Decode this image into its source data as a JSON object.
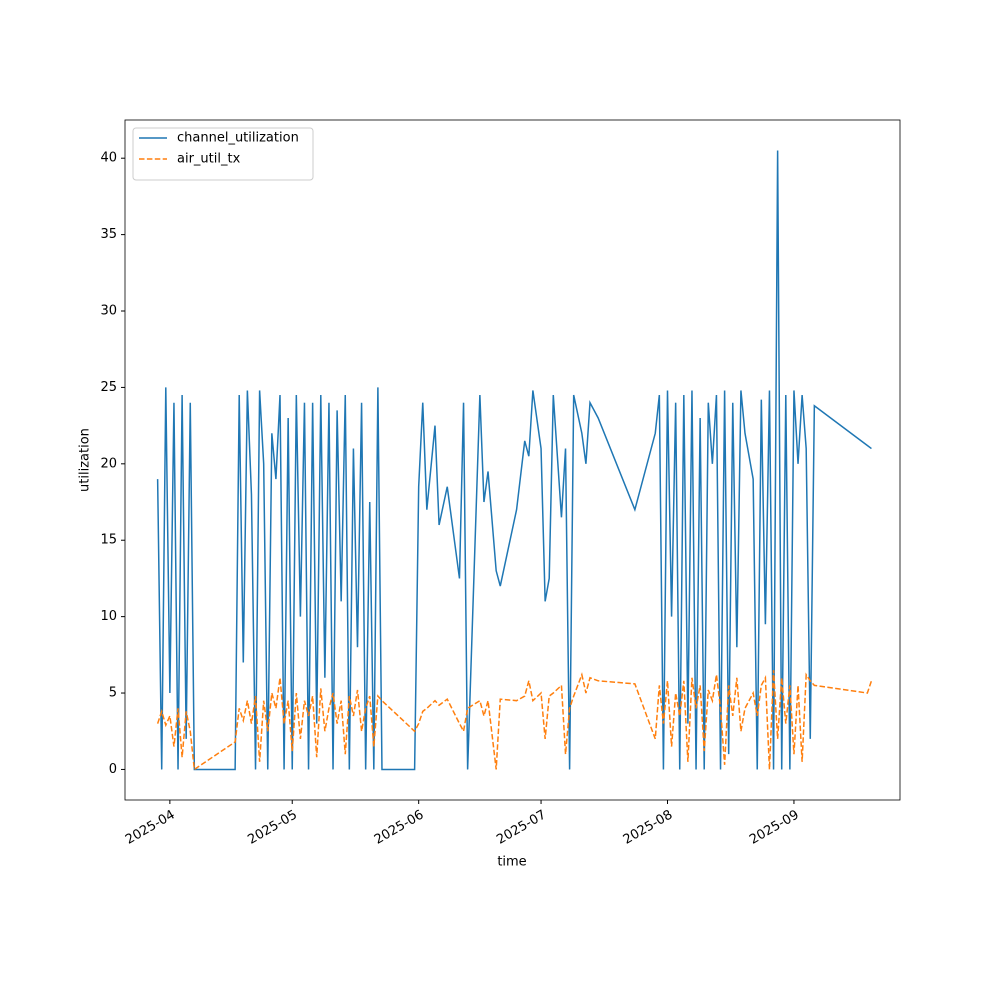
{
  "chart_data": {
    "type": "line",
    "x_label": "time",
    "y_label": "utilization",
    "x": [
      "2025-03-29",
      "2025-03-30",
      "2025-03-31",
      "2025-04-01",
      "2025-04-02",
      "2025-04-03",
      "2025-04-04",
      "2025-04-05",
      "2025-04-06",
      "2025-04-07",
      "2025-04-17",
      "2025-04-18",
      "2025-04-19",
      "2025-04-20",
      "2025-04-21",
      "2025-04-22",
      "2025-04-23",
      "2025-04-24",
      "2025-04-25",
      "2025-04-26",
      "2025-04-27",
      "2025-04-28",
      "2025-04-29",
      "2025-04-30",
      "2025-05-01",
      "2025-05-02",
      "2025-05-03",
      "2025-05-04",
      "2025-05-05",
      "2025-05-06",
      "2025-05-07",
      "2025-05-08",
      "2025-05-09",
      "2025-05-10",
      "2025-05-11",
      "2025-05-12",
      "2025-05-13",
      "2025-05-14",
      "2025-05-15",
      "2025-05-16",
      "2025-05-17",
      "2025-05-18",
      "2025-05-19",
      "2025-05-20",
      "2025-05-21",
      "2025-05-22",
      "2025-05-23",
      "2025-05-31",
      "2025-06-01",
      "2025-06-02",
      "2025-06-03",
      "2025-06-05",
      "2025-06-06",
      "2025-06-08",
      "2025-06-11",
      "2025-06-12",
      "2025-06-13",
      "2025-06-16",
      "2025-06-17",
      "2025-06-18",
      "2025-06-20",
      "2025-06-21",
      "2025-06-25",
      "2025-06-27",
      "2025-06-28",
      "2025-06-29",
      "2025-07-01",
      "2025-07-02",
      "2025-07-03",
      "2025-07-04",
      "2025-07-06",
      "2025-07-07",
      "2025-07-08",
      "2025-07-09",
      "2025-07-11",
      "2025-07-12",
      "2025-07-13",
      "2025-07-15",
      "2025-07-24",
      "2025-07-29",
      "2025-07-30",
      "2025-07-31",
      "2025-08-01",
      "2025-08-02",
      "2025-08-03",
      "2025-08-04",
      "2025-08-05",
      "2025-08-06",
      "2025-08-07",
      "2025-08-08",
      "2025-08-09",
      "2025-08-10",
      "2025-08-11",
      "2025-08-12",
      "2025-08-13",
      "2025-08-14",
      "2025-08-15",
      "2025-08-16",
      "2025-08-17",
      "2025-08-18",
      "2025-08-19",
      "2025-08-20",
      "2025-08-22",
      "2025-08-23",
      "2025-08-24",
      "2025-08-25",
      "2025-08-26",
      "2025-08-27",
      "2025-08-28",
      "2025-08-29",
      "2025-08-30",
      "2025-08-31",
      "2025-09-01",
      "2025-09-02",
      "2025-09-03",
      "2025-09-04",
      "2025-09-05",
      "2025-09-06",
      "2025-09-19",
      "2025-09-20"
    ],
    "series": [
      {
        "name": "channel_utilization",
        "color": "#1f77b4",
        "linestyle": "solid",
        "values": [
          19,
          0,
          25,
          5,
          24,
          0,
          24.5,
          2,
          24,
          0,
          0,
          24.5,
          7,
          24.8,
          18,
          0,
          24.8,
          20,
          0,
          22,
          19,
          24.5,
          0,
          23,
          0,
          24.5,
          10,
          24,
          0,
          24,
          3,
          24.5,
          6,
          24,
          0,
          23.5,
          11,
          24.5,
          0,
          21,
          8,
          24,
          0,
          17.5,
          0,
          25,
          0,
          0,
          18.5,
          24,
          17,
          22.5,
          16,
          18.5,
          12.5,
          24,
          0,
          24.5,
          17.5,
          19.5,
          13,
          12,
          17,
          21.5,
          20.5,
          24.8,
          21,
          11,
          12.5,
          24.5,
          16.5,
          21,
          0,
          24.5,
          22,
          20,
          24,
          23,
          17,
          22,
          24.5,
          0,
          24.8,
          10,
          24,
          0,
          24.5,
          3,
          24.8,
          0,
          23,
          0,
          24,
          20,
          24.5,
          0,
          24.8,
          1,
          24,
          8,
          24.8,
          22,
          19,
          0,
          24.2,
          9.5,
          24.8,
          0,
          40.5,
          0,
          24.5,
          0,
          24.8,
          20,
          24.5,
          21,
          2,
          23.8,
          21.2,
          21.0
        ]
      },
      {
        "name": "air_util_tx",
        "color": "#ff7f0e",
        "linestyle": "dashed",
        "values": [
          3.0,
          3.8,
          2.9,
          3.5,
          1.5,
          4.0,
          0.8,
          3.8,
          2.5,
          0,
          1.8,
          4.0,
          3.2,
          4.5,
          3.0,
          4.8,
          0.5,
          4.5,
          2.5,
          5.0,
          4.0,
          6.0,
          3.0,
          4.5,
          1.2,
          5.0,
          2.0,
          4.5,
          3.5,
          4.8,
          0.8,
          5.3,
          2.5,
          4.0,
          5.0,
          3.0,
          4.5,
          1.0,
          4.8,
          3.5,
          5.2,
          2.5,
          4.0,
          4.8,
          1.5,
          4.8,
          4.5,
          2.5,
          3.0,
          3.8,
          4.0,
          4.5,
          4.2,
          4.6,
          3.0,
          2.5,
          4.0,
          4.5,
          3.5,
          4.5,
          0,
          4.6,
          4.5,
          4.8,
          5.8,
          4.5,
          5.0,
          2.0,
          4.8,
          5.0,
          5.5,
          1.0,
          4.0,
          4.8,
          6.2,
          5.0,
          6.0,
          5.8,
          5.6,
          2.0,
          5.5,
          3.0,
          5.8,
          1.5,
          5.0,
          3.5,
          5.8,
          0.5,
          6.0,
          4.0,
          5.5,
          1.2,
          5.2,
          4.5,
          6.2,
          4.0,
          0.3,
          5.5,
          3.5,
          6.0,
          2.5,
          4.0,
          5.0,
          3.5,
          5.5,
          6.0,
          0,
          6.5,
          2.0,
          6.0,
          3.0,
          5.5,
          1.0,
          5.5,
          0.5,
          6.2,
          5.8,
          5.5,
          5.0,
          5.8
        ]
      }
    ],
    "xlim": [
      "2025-03-21",
      "2025-09-27"
    ],
    "xticks": [
      {
        "value": "2025-04-01",
        "label": "2025-04"
      },
      {
        "value": "2025-05-01",
        "label": "2025-05"
      },
      {
        "value": "2025-06-01",
        "label": "2025-06"
      },
      {
        "value": "2025-07-01",
        "label": "2025-07"
      },
      {
        "value": "2025-08-01",
        "label": "2025-08"
      },
      {
        "value": "2025-09-01",
        "label": "2025-09"
      }
    ],
    "ylim": [
      -2,
      42.5
    ],
    "yticks": [
      0,
      5,
      10,
      15,
      20,
      25,
      30,
      35,
      40
    ],
    "legend": "upper left"
  }
}
